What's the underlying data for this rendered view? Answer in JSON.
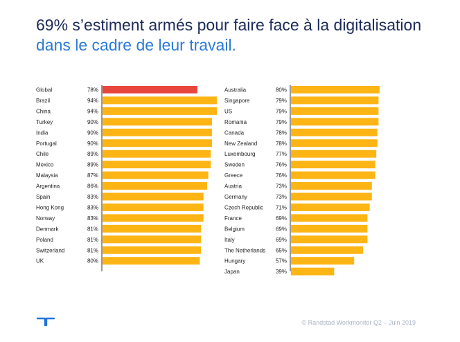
{
  "title": {
    "line1": "69% s’estiment armés pour faire face à la digitalisation",
    "line2": "dans le cadre de leur travail."
  },
  "footer": {
    "logo_icon": "randstad-logo-icon",
    "source": "© Randstad Workmonitor Q2 – Juin  2019"
  },
  "colors": {
    "highlight": "#e8463c",
    "bar": "#fdb515",
    "text": "#222222",
    "axis": "#333333",
    "logo": "#2175d9"
  },
  "chart_data": [
    {
      "type": "bar",
      "orientation": "horizontal",
      "xlim": [
        0,
        100
      ],
      "categories": [
        "Global",
        "Brazil",
        "China",
        "Turkey",
        "India",
        "Portugal",
        "Chile",
        "Mexico",
        "Malaysia",
        "Argentina",
        "Spain",
        "Hong Kong",
        "Norway",
        "Denmark",
        "Poland",
        "Switzerland",
        "UK"
      ],
      "values": [
        78,
        94,
        94,
        90,
        90,
        90,
        89,
        89,
        87,
        86,
        83,
        83,
        83,
        81,
        81,
        81,
        80
      ],
      "value_labels": [
        "78%",
        "94%",
        "94%",
        "90%",
        "90%",
        "90%",
        "89%",
        "89%",
        "87%",
        "86%",
        "83%",
        "83%",
        "83%",
        "81%",
        "81%",
        "81%",
        "80%"
      ],
      "highlight_category": "Global"
    },
    {
      "type": "bar",
      "orientation": "horizontal",
      "xlim": [
        0,
        100
      ],
      "categories": [
        "Australia",
        "Singapore",
        "US",
        "Romania",
        "Canada",
        "New Zealand",
        "Luxembourg",
        "Sweden",
        "Greece",
        "Austria",
        "Germany",
        "Czech Republic",
        "France",
        "Belgium",
        "Italy",
        "The Netherlands",
        "Hungary",
        "Japan"
      ],
      "values": [
        80,
        79,
        79,
        79,
        78,
        78,
        77,
        76,
        76,
        73,
        73,
        71,
        69,
        69,
        69,
        65,
        57,
        39
      ],
      "value_labels": [
        "80%",
        "79%",
        "79%",
        "79%",
        "78%",
        "78%",
        "77%",
        "76%",
        "76%",
        "73%",
        "73%",
        "71%",
        "69%",
        "69%",
        "69%",
        "65%",
        "57%",
        "39%"
      ]
    }
  ]
}
